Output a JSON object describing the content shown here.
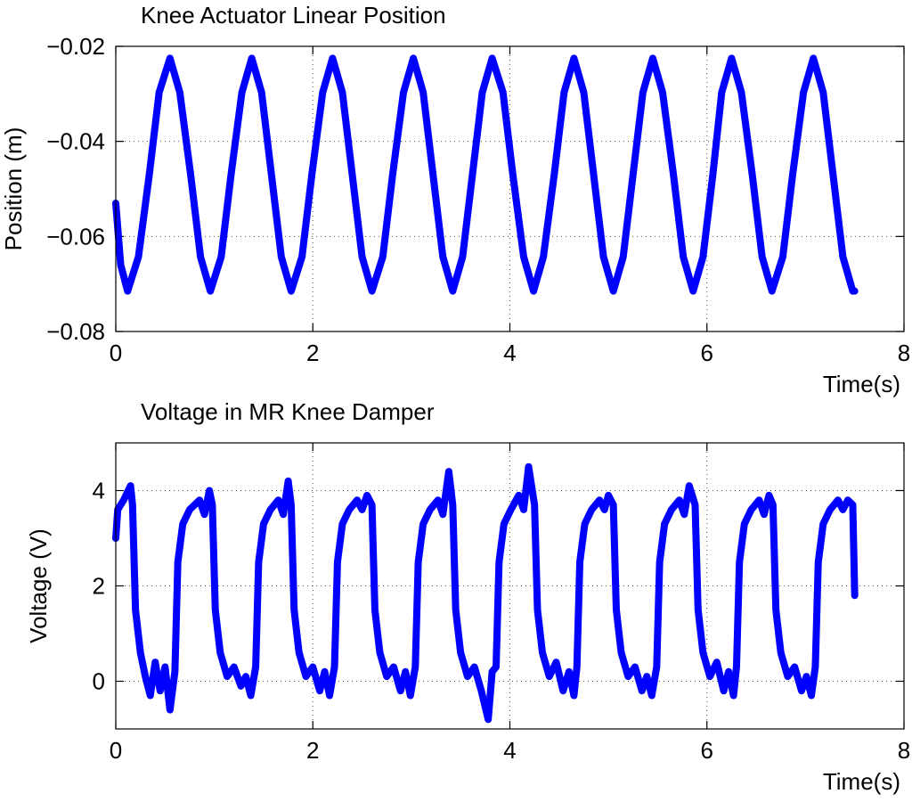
{
  "chart_data": [
    {
      "type": "line",
      "title": "Knee Actuator Linear Position",
      "x_label": "Time(s)",
      "y_label": "Position (m)",
      "color": "#0000ff",
      "grid": true,
      "xlim": [
        0,
        8
      ],
      "xticks": [
        0,
        2,
        4,
        6,
        8
      ],
      "ylim": [
        -0.08,
        -0.02
      ],
      "yticks": [
        {
          "value": -0.08,
          "label": "−0.08"
        },
        {
          "value": -0.06,
          "label": "−0.06"
        },
        {
          "value": -0.04,
          "label": "−0.04"
        },
        {
          "value": -0.02,
          "label": "−0.02"
        }
      ],
      "x": [
        0,
        0.05,
        0.12,
        0.23,
        0.34,
        0.44,
        0.55,
        0.65,
        0.76,
        0.86,
        0.96,
        1.07,
        1.17,
        1.28,
        1.38,
        1.48,
        1.58,
        1.68,
        1.78,
        1.89,
        1.99,
        2.1,
        2.2,
        2.3,
        2.4,
        2.5,
        2.6,
        2.71,
        2.81,
        2.92,
        3.02,
        3.12,
        3.22,
        3.32,
        3.42,
        3.52,
        3.62,
        3.72,
        3.82,
        3.93,
        4.03,
        4.14,
        4.24,
        4.34,
        4.45,
        4.55,
        4.65,
        4.75,
        4.85,
        4.95,
        5.05,
        5.15,
        5.25,
        5.35,
        5.45,
        5.55,
        5.66,
        5.76,
        5.86,
        5.96,
        6.06,
        6.15,
        6.25,
        6.35,
        6.46,
        6.56,
        6.66,
        6.77,
        6.87,
        6.98,
        7.08,
        7.18,
        7.28,
        7.38,
        7.48,
        7.5
      ],
      "values": [
        -0.053,
        -0.066,
        -0.0715,
        -0.0643,
        -0.047,
        -0.0297,
        -0.0225,
        -0.0297,
        -0.047,
        -0.0643,
        -0.0715,
        -0.0643,
        -0.047,
        -0.0297,
        -0.0225,
        -0.0297,
        -0.047,
        -0.0643,
        -0.0715,
        -0.0643,
        -0.047,
        -0.0297,
        -0.0225,
        -0.0297,
        -0.047,
        -0.0643,
        -0.0715,
        -0.0643,
        -0.047,
        -0.0297,
        -0.0225,
        -0.0297,
        -0.047,
        -0.0643,
        -0.0715,
        -0.0643,
        -0.047,
        -0.0297,
        -0.0225,
        -0.0297,
        -0.047,
        -0.0643,
        -0.0715,
        -0.0643,
        -0.047,
        -0.0297,
        -0.0225,
        -0.0297,
        -0.047,
        -0.0643,
        -0.0715,
        -0.0643,
        -0.047,
        -0.0297,
        -0.0225,
        -0.0297,
        -0.047,
        -0.0643,
        -0.0715,
        -0.0643,
        -0.047,
        -0.0297,
        -0.0225,
        -0.0297,
        -0.047,
        -0.0643,
        -0.0715,
        -0.0643,
        -0.047,
        -0.0297,
        -0.0225,
        -0.0297,
        -0.047,
        -0.0643,
        -0.0715,
        -0.0715
      ]
    },
    {
      "type": "line",
      "title": "Voltage in MR Knee Damper",
      "x_label": "Time(s)",
      "y_label": "Voltage (V)",
      "color": "#0000ff",
      "grid": true,
      "xlim": [
        0,
        8
      ],
      "xticks": [
        0,
        2,
        4,
        6,
        8
      ],
      "ylim": [
        -1,
        5
      ],
      "yticks": [
        0,
        2,
        4
      ],
      "x": [
        0,
        0.02,
        0.08,
        0.15,
        0.17,
        0.2,
        0.25,
        0.3,
        0.35,
        0.4,
        0.45,
        0.5,
        0.55,
        0.6,
        0.63,
        0.68,
        0.75,
        0.85,
        0.9,
        0.95,
        0.98,
        1.01,
        1.06,
        1.13,
        1.2,
        1.27,
        1.32,
        1.37,
        1.42,
        1.45,
        1.5,
        1.57,
        1.65,
        1.7,
        1.75,
        1.78,
        1.81,
        1.86,
        1.93,
        2.0,
        2.07,
        2.12,
        2.17,
        2.22,
        2.25,
        2.3,
        2.37,
        2.45,
        2.5,
        2.55,
        2.6,
        2.63,
        2.68,
        2.75,
        2.82,
        2.89,
        2.94,
        2.99,
        3.04,
        3.07,
        3.12,
        3.19,
        3.27,
        3.32,
        3.38,
        3.42,
        3.45,
        3.5,
        3.57,
        3.64,
        3.71,
        3.78,
        3.82,
        3.86,
        3.89,
        3.94,
        4.01,
        4.09,
        4.14,
        4.19,
        4.25,
        4.28,
        4.33,
        4.4,
        4.47,
        4.54,
        4.6,
        4.65,
        4.68,
        4.71,
        4.76,
        4.83,
        4.91,
        4.96,
        5.0,
        5.05,
        5.08,
        5.13,
        5.2,
        5.27,
        5.34,
        5.39,
        5.44,
        5.49,
        5.52,
        5.57,
        5.64,
        5.72,
        5.77,
        5.82,
        5.88,
        5.91,
        5.96,
        6.03,
        6.1,
        6.17,
        6.22,
        6.27,
        6.3,
        6.33,
        6.38,
        6.45,
        6.53,
        6.58,
        6.63,
        6.67,
        6.7,
        6.75,
        6.82,
        6.89,
        6.96,
        7.01,
        7.06,
        7.1,
        7.13,
        7.18,
        7.25,
        7.33,
        7.38,
        7.43,
        7.48,
        7.5
      ],
      "values": [
        3.0,
        3.6,
        3.8,
        4.1,
        3.7,
        1.5,
        0.6,
        0.1,
        -0.3,
        0.4,
        -0.2,
        0.3,
        -0.6,
        0.2,
        2.5,
        3.3,
        3.6,
        3.8,
        3.5,
        4.0,
        3.7,
        1.5,
        0.6,
        0.1,
        0.3,
        -0.1,
        0.1,
        -0.3,
        0.3,
        2.5,
        3.3,
        3.6,
        3.8,
        3.5,
        4.2,
        3.7,
        1.5,
        0.6,
        0.1,
        0.3,
        -0.2,
        0.2,
        -0.3,
        0.3,
        2.5,
        3.3,
        3.6,
        3.8,
        3.6,
        3.9,
        3.7,
        1.5,
        0.6,
        0.1,
        0.3,
        -0.2,
        0.2,
        -0.3,
        0.3,
        2.5,
        3.3,
        3.6,
        3.8,
        3.5,
        4.4,
        3.7,
        1.5,
        0.6,
        0.1,
        0.3,
        -0.2,
        -0.8,
        0.2,
        0.3,
        2.5,
        3.3,
        3.6,
        3.9,
        3.6,
        4.5,
        3.7,
        1.5,
        0.6,
        0.1,
        0.4,
        -0.2,
        0.2,
        -0.3,
        0.3,
        2.5,
        3.3,
        3.6,
        3.8,
        3.6,
        3.9,
        3.7,
        1.5,
        0.6,
        0.1,
        0.3,
        -0.2,
        0.1,
        -0.3,
        0.3,
        2.5,
        3.3,
        3.6,
        3.8,
        3.5,
        4.1,
        3.7,
        1.5,
        0.6,
        0.1,
        0.4,
        -0.2,
        0.2,
        -0.3,
        0.3,
        2.5,
        3.3,
        3.6,
        3.8,
        3.5,
        3.9,
        3.7,
        1.5,
        0.6,
        0.1,
        0.3,
        -0.2,
        0.1,
        -0.3,
        0.3,
        2.5,
        3.3,
        3.6,
        3.8,
        3.6,
        3.8,
        3.7,
        1.8
      ]
    }
  ]
}
